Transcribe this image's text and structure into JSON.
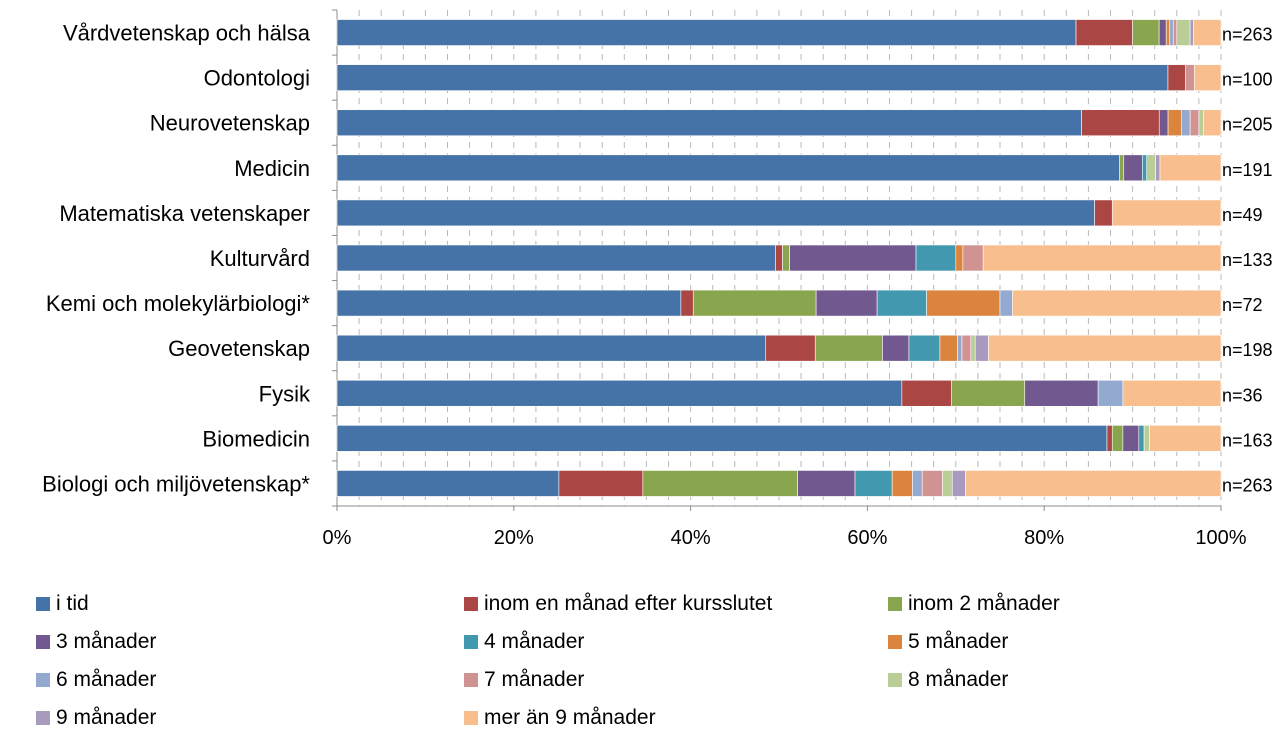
{
  "chart_data": {
    "type": "bar",
    "orientation": "horizontal",
    "stacked": "percent",
    "categories": [
      "Vårdvetenskap och hälsa",
      "Odontologi",
      "Neurovetenskap",
      "Medicin",
      "Matematiska vetenskaper",
      "Kulturvård",
      "Kemi och molekylärbiologi*",
      "Geovetenskap",
      "Fysik",
      "Biomedicin",
      "Biologi och miljövetenskap*"
    ],
    "n_labels": [
      "n=263",
      "n=100",
      "n=205",
      "n=191",
      "n=49",
      "n=133",
      "n=72",
      "n=198",
      "n=36",
      "n=163",
      "n=263"
    ],
    "series": [
      {
        "name": "i tid",
        "color": "#4572A7",
        "values": [
          83.6,
          94.0,
          84.4,
          88.5,
          85.7,
          49.6,
          38.9,
          48.5,
          63.9,
          87.1,
          25.1
        ]
      },
      {
        "name": "inom en månad efter kursslutet",
        "color": "#AA4643",
        "values": [
          6.4,
          2.0,
          8.8,
          0.0,
          2.0,
          0.8,
          1.4,
          5.6,
          5.6,
          0.6,
          9.5
        ]
      },
      {
        "name": "inom 2 månader",
        "color": "#89A54E",
        "values": [
          3.0,
          0.0,
          0.0,
          0.5,
          0.0,
          0.8,
          13.9,
          7.6,
          8.3,
          1.2,
          17.5
        ]
      },
      {
        "name": "3 månader",
        "color": "#71588F",
        "values": [
          0.8,
          0.0,
          1.0,
          2.1,
          0.0,
          14.3,
          6.9,
          3.0,
          8.3,
          1.8,
          6.5
        ]
      },
      {
        "name": "4 månader",
        "color": "#4198AF",
        "values": [
          0.0,
          0.0,
          0.0,
          0.5,
          0.0,
          4.5,
          5.6,
          3.5,
          0.0,
          0.6,
          4.2
        ]
      },
      {
        "name": "5 månader",
        "color": "#DB843D",
        "values": [
          0.4,
          0.0,
          1.5,
          0.0,
          0.0,
          0.8,
          8.3,
          2.0,
          0.0,
          0.0,
          2.3
        ]
      },
      {
        "name": "6 månader",
        "color": "#93A9CF",
        "values": [
          0.4,
          0.0,
          1.0,
          0.0,
          0.0,
          0.0,
          1.4,
          0.5,
          2.8,
          0.0,
          1.1
        ]
      },
      {
        "name": "7 månader",
        "color": "#D19392",
        "values": [
          0.4,
          1.0,
          1.0,
          0.0,
          0.0,
          2.3,
          0.0,
          1.0,
          0.0,
          0.0,
          2.3
        ]
      },
      {
        "name": "8 månader",
        "color": "#B9CD96",
        "values": [
          1.5,
          0.0,
          0.5,
          1.0,
          0.0,
          0.0,
          0.0,
          0.5,
          0.0,
          0.6,
          1.1
        ]
      },
      {
        "name": "9 månader",
        "color": "#A99BBD",
        "values": [
          0.4,
          0.0,
          0.0,
          0.5,
          0.0,
          0.0,
          0.0,
          1.5,
          0.0,
          0.0,
          1.5
        ]
      },
      {
        "name": "mer än 9 månader",
        "color": "#F9BE8E",
        "values": [
          3.1,
          3.0,
          2.0,
          6.9,
          12.3,
          26.9,
          23.6,
          26.3,
          11.1,
          8.1,
          28.9
        ]
      }
    ],
    "xlim": [
      0,
      100
    ],
    "x_ticks": [
      "0%",
      "20%",
      "40%",
      "60%",
      "80%",
      "100%"
    ],
    "grid": "vertical, dashed",
    "legend_position": "bottom",
    "title": "",
    "xlabel": "",
    "ylabel": ""
  }
}
